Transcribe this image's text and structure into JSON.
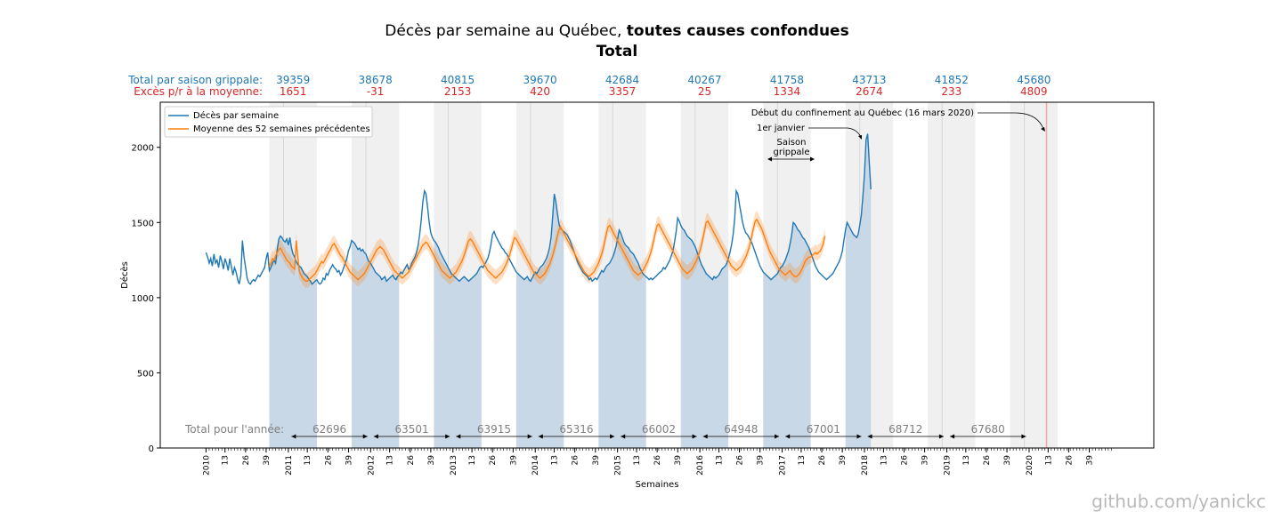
{
  "title": {
    "normal": "Décès par semaine au Québec, ",
    "bold": "toutes causes confondues",
    "subtitle": "Total"
  },
  "watermark": "github.com/yanickc",
  "colors": {
    "weekly": "#1f77b4",
    "average": "#ff7f0e",
    "excess_label": "#d62728",
    "season_fill": "#f0f0f0",
    "area_fill": "#c9d8e6",
    "vline": "#f4a6a6"
  },
  "season_header": {
    "total_label": "Total par saison grippale:",
    "excess_label": "Excès p/r à la moyenne:",
    "totals": [
      "39359",
      "38678",
      "40815",
      "39670",
      "42684",
      "40267",
      "41758",
      "43713",
      "41852",
      "45680"
    ],
    "excess": [
      "1651",
      "-31",
      "2153",
      "420",
      "3357",
      "25",
      "1334",
      "2674",
      "233",
      "4809"
    ]
  },
  "year_totals": {
    "label": "Total pour l'année:",
    "values": [
      "62696",
      "63501",
      "63915",
      "65316",
      "66002",
      "64948",
      "67001",
      "68712",
      "67680"
    ]
  },
  "annotations": {
    "confinement": "Début du confinement au Québec (16 mars 2020)",
    "jan1": "1er janvier",
    "season_1": "Saison",
    "season_2": "grippale"
  },
  "chart_data": {
    "type": "line",
    "title": "Décès par semaine au Québec, toutes causes confondues — Total",
    "xlabel": "Semaines",
    "ylabel": "Décès",
    "ylim": [
      0,
      2300
    ],
    "yticks": [
      0,
      500,
      1000,
      1500,
      2000
    ],
    "xticks": [
      "2010",
      "13",
      "26",
      "39",
      "2011",
      "13",
      "26",
      "39",
      "2012",
      "13",
      "26",
      "39",
      "2013",
      "13",
      "26",
      "39",
      "2014",
      "13",
      "26",
      "39",
      "2015",
      "13",
      "26",
      "39",
      "2016",
      "13",
      "26",
      "39",
      "2017",
      "13",
      "26",
      "39",
      "2018",
      "13",
      "26",
      "39",
      "2019",
      "13",
      "26",
      "39",
      "2020",
      "13",
      "26",
      "39"
    ],
    "legend": {
      "position": "top-left",
      "entries": [
        "Décès par semaine",
        "Moyenne des 52 semaines précédentes"
      ]
    },
    "seasons_start_week": [
      40,
      92,
      144,
      196,
      248,
      300,
      352,
      404,
      456,
      508
    ],
    "series": [
      {
        "name": "Décès par semaine",
        "start_week": 0,
        "values": [
          1300,
          1270,
          1230,
          1260,
          1210,
          1290,
          1230,
          1250,
          1200,
          1280,
          1240,
          1190,
          1260,
          1230,
          1180,
          1260,
          1210,
          1150,
          1200,
          1170,
          1120,
          1090,
          1150,
          1380,
          1270,
          1200,
          1130,
          1100,
          1090,
          1110,
          1120,
          1110,
          1130,
          1150,
          1140,
          1160,
          1180,
          1200,
          1260,
          1300,
          1180,
          1200,
          1230,
          1250,
          1230,
          1320,
          1390,
          1410,
          1400,
          1380,
          1370,
          1390,
          1350,
          1400,
          1330,
          1290,
          1270,
          1240,
          1220,
          1210,
          1200,
          1180,
          1160,
          1150,
          1140,
          1120,
          1110,
          1090,
          1100,
          1110,
          1120,
          1100,
          1090,
          1100,
          1130,
          1120,
          1160,
          1150,
          1180,
          1200,
          1220,
          1200,
          1190,
          1170,
          1180,
          1150,
          1170,
          1200,
          1230,
          1260,
          1310,
          1340,
          1380,
          1370,
          1360,
          1340,
          1320,
          1330,
          1310,
          1320,
          1300,
          1290,
          1260,
          1240,
          1230,
          1210,
          1190,
          1170,
          1160,
          1150,
          1140,
          1120,
          1130,
          1140,
          1110,
          1120,
          1130,
          1140,
          1150,
          1130,
          1120,
          1140,
          1150,
          1170,
          1160,
          1180,
          1200,
          1220,
          1190,
          1200,
          1230,
          1250,
          1270,
          1300,
          1350,
          1420,
          1520,
          1640,
          1710,
          1690,
          1600,
          1500,
          1430,
          1400,
          1380,
          1370,
          1350,
          1330,
          1300,
          1280,
          1260,
          1240,
          1220,
          1200,
          1180,
          1160,
          1150,
          1140,
          1130,
          1120,
          1110,
          1120,
          1130,
          1140,
          1130,
          1120,
          1110,
          1120,
          1130,
          1140,
          1150,
          1160,
          1180,
          1200,
          1210,
          1200,
          1220,
          1240,
          1260,
          1300,
          1350,
          1420,
          1440,
          1410,
          1390,
          1370,
          1350,
          1330,
          1320,
          1300,
          1290,
          1270,
          1250,
          1230,
          1210,
          1190,
          1170,
          1160,
          1150,
          1140,
          1130,
          1120,
          1130,
          1140,
          1120,
          1110,
          1130,
          1150,
          1170,
          1160,
          1180,
          1200,
          1210,
          1220,
          1240,
          1260,
          1290,
          1330,
          1400,
          1540,
          1690,
          1640,
          1560,
          1490,
          1460,
          1450,
          1440,
          1430,
          1420,
          1400,
          1380,
          1350,
          1320,
          1290,
          1260,
          1230,
          1210,
          1190,
          1170,
          1160,
          1150,
          1140,
          1120,
          1130,
          1110,
          1120,
          1130,
          1120,
          1140,
          1160,
          1180,
          1170,
          1190,
          1210,
          1220,
          1230,
          1250,
          1270,
          1300,
          1340,
          1390,
          1450,
          1430,
          1400,
          1370,
          1350,
          1340,
          1330,
          1310,
          1300,
          1290,
          1270,
          1250,
          1230,
          1200,
          1180,
          1160,
          1150,
          1140,
          1130,
          1120,
          1130,
          1120,
          1130,
          1140,
          1150,
          1160,
          1170,
          1180,
          1200,
          1190,
          1210,
          1230,
          1250,
          1280,
          1310,
          1370,
          1440,
          1530,
          1510,
          1480,
          1460,
          1450,
          1430,
          1410,
          1400,
          1390,
          1380,
          1360,
          1340,
          1310,
          1280,
          1250,
          1220,
          1200,
          1180,
          1160,
          1150,
          1140,
          1130,
          1120,
          1140,
          1130,
          1140,
          1150,
          1170,
          1190,
          1200,
          1210,
          1230,
          1260,
          1300,
          1350,
          1420,
          1530,
          1710,
          1690,
          1620,
          1560,
          1500,
          1460,
          1430,
          1420,
          1400,
          1380,
          1360,
          1330,
          1300,
          1270,
          1240,
          1210,
          1190,
          1170,
          1160,
          1150,
          1140,
          1130,
          1120,
          1130,
          1140,
          1150,
          1160,
          1180,
          1200,
          1210,
          1230,
          1250,
          1280,
          1310,
          1360,
          1420,
          1500,
          1490,
          1470,
          1450,
          1440,
          1420,
          1400,
          1390,
          1370,
          1350,
          1330,
          1300,
          1270,
          1240,
          1210,
          1190,
          1170,
          1160,
          1150,
          1140,
          1130,
          1120,
          1130,
          1140,
          1150,
          1160,
          1180,
          1200,
          1220,
          1240,
          1270,
          1310,
          1380,
          1450,
          1500,
          1480,
          1460,
          1440,
          1420,
          1410,
          1400,
          1420,
          1480,
          1550,
          1680,
          1820,
          2050,
          2090,
          1900,
          1720
        ]
      },
      {
        "name": "Moyenne des 52 semaines précédentes",
        "start_week": 40,
        "values": [
          1210,
          1230,
          1260,
          1250,
          1280,
          1300,
          1320,
          1330,
          1310,
          1290,
          1270,
          1250,
          1240,
          1230,
          1210,
          1200,
          1190,
          1380,
          1270,
          1170,
          1150,
          1130,
          1120,
          1110,
          1110,
          1120,
          1130,
          1140,
          1150,
          1160,
          1180,
          1200,
          1220,
          1240,
          1230,
          1250,
          1270,
          1290,
          1310,
          1330,
          1350,
          1360,
          1340,
          1320,
          1300,
          1280,
          1270,
          1250,
          1230,
          1210,
          1190,
          1170,
          1160,
          1150,
          1140,
          1130,
          1120,
          1130,
          1140,
          1150,
          1160,
          1180,
          1200,
          1220,
          1240,
          1260,
          1280,
          1300,
          1320,
          1330,
          1340,
          1330,
          1320,
          1300,
          1280,
          1260,
          1240,
          1220,
          1200,
          1180,
          1170,
          1160,
          1150,
          1140,
          1130,
          1140,
          1150,
          1160,
          1170,
          1190,
          1210,
          1230,
          1250,
          1270,
          1290,
          1310,
          1330,
          1350,
          1360,
          1370,
          1360,
          1340,
          1320,
          1300,
          1280,
          1260,
          1240,
          1220,
          1200,
          1180,
          1170,
          1160,
          1150,
          1140,
          1130,
          1140,
          1150,
          1160,
          1170,
          1190,
          1210,
          1230,
          1250,
          1280,
          1310,
          1350,
          1380,
          1390,
          1380,
          1360,
          1340,
          1320,
          1300,
          1280,
          1260,
          1240,
          1220,
          1200,
          1180,
          1170,
          1160,
          1150,
          1140,
          1130,
          1140,
          1150,
          1160,
          1170,
          1190,
          1210,
          1230,
          1260,
          1290,
          1330,
          1370,
          1400,
          1390,
          1370,
          1350,
          1330,
          1310,
          1290,
          1270,
          1250,
          1230,
          1210,
          1190,
          1170,
          1160,
          1150,
          1140,
          1130,
          1140,
          1150,
          1160,
          1180,
          1200,
          1220,
          1250,
          1280,
          1320,
          1360,
          1410,
          1450,
          1470,
          1450,
          1430,
          1410,
          1390,
          1370,
          1350,
          1330,
          1310,
          1290,
          1270,
          1250,
          1230,
          1210,
          1190,
          1170,
          1160,
          1150,
          1140,
          1150,
          1160,
          1170,
          1190,
          1210,
          1230,
          1260,
          1290,
          1330,
          1380,
          1430,
          1470,
          1480,
          1460,
          1440,
          1420,
          1400,
          1380,
          1360,
          1340,
          1320,
          1300,
          1280,
          1260,
          1240,
          1220,
          1200,
          1180,
          1170,
          1160,
          1150,
          1160,
          1170,
          1180,
          1200,
          1220,
          1240,
          1270,
          1300,
          1340,
          1390,
          1440,
          1480,
          1490,
          1470,
          1450,
          1430,
          1410,
          1390,
          1370,
          1350,
          1330,
          1310,
          1290,
          1270,
          1250,
          1230,
          1210,
          1190,
          1180,
          1170,
          1160,
          1170,
          1180,
          1190,
          1210,
          1230,
          1250,
          1280,
          1310,
          1350,
          1400,
          1450,
          1500,
          1510,
          1490,
          1470,
          1450,
          1430,
          1410,
          1390,
          1370,
          1350,
          1330,
          1310,
          1290,
          1270,
          1250,
          1230,
          1210,
          1200,
          1190,
          1180,
          1190,
          1200,
          1210,
          1230,
          1250,
          1270,
          1300,
          1330,
          1370,
          1420,
          1470,
          1510,
          1520,
          1500,
          1480,
          1460,
          1430,
          1400,
          1370,
          1340,
          1310,
          1290,
          1270,
          1250,
          1230,
          1210,
          1190,
          1180,
          1170,
          1160,
          1150,
          1160,
          1170,
          1180,
          1160,
          1150,
          1140,
          1140,
          1150,
          1160,
          1180,
          1200,
          1230,
          1250,
          1260,
          1270,
          1270,
          1280,
          1290,
          1300,
          1290,
          1300,
          1310,
          1330,
          1360,
          1410
        ]
      }
    ]
  }
}
